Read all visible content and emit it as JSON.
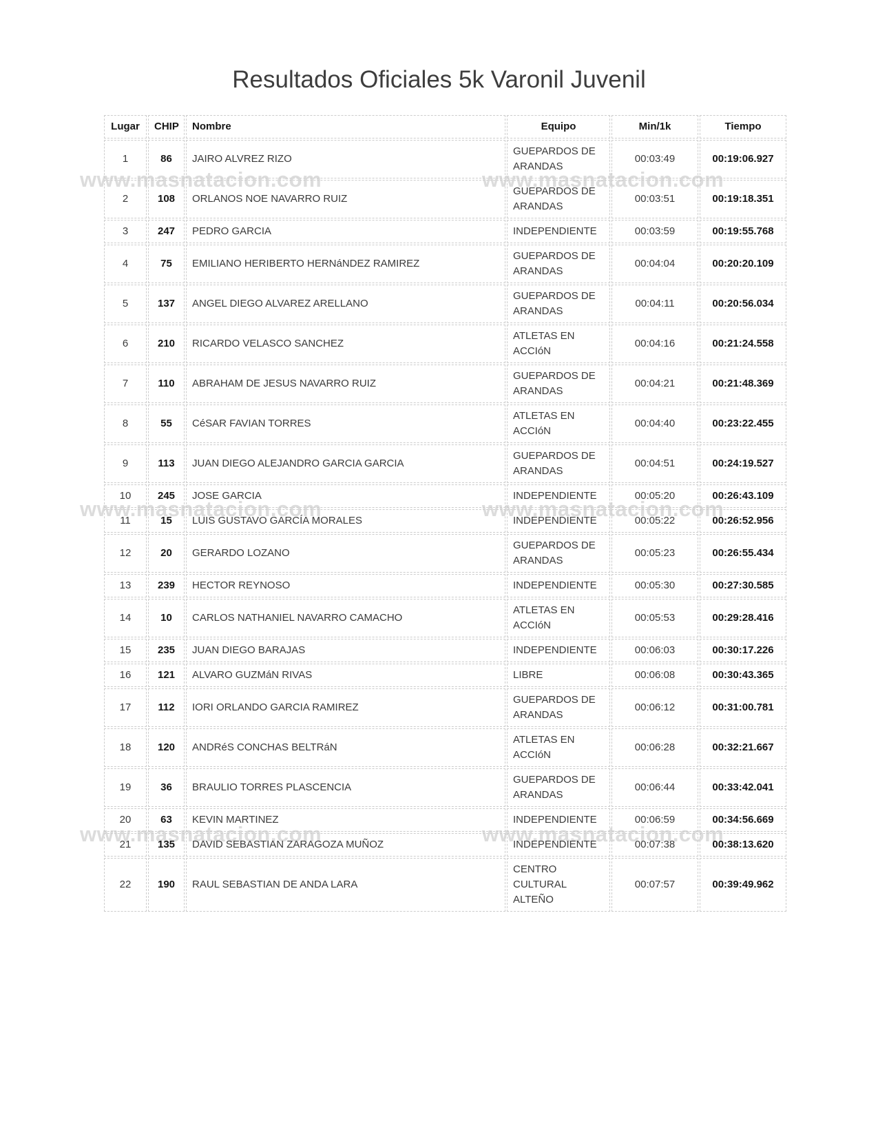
{
  "page": {
    "title": "Resultados Oficiales 5k Varonil Juvenil",
    "watermark_text": "www.masnatacion.com"
  },
  "colors": {
    "border": "#cccccc",
    "body_text": "#3b3b3b",
    "bold_text": "#161616",
    "watermark": "#dcdcdc"
  },
  "table": {
    "headers": {
      "lugar": "Lugar",
      "chip": "CHIP",
      "nombre": "Nombre",
      "equipo": "Equipo",
      "min1k": "Min/1k",
      "tiempo": "Tiempo"
    },
    "rows": [
      {
        "lugar": "1",
        "chip": "86",
        "nombre": "JAIRO ALVREZ RIZO",
        "equipo": "GUEPARDOS DE ARANDAS",
        "min1k": "00:03:49",
        "tiempo": "00:19:06.927"
      },
      {
        "lugar": "2",
        "chip": "108",
        "nombre": "ORLANOS NOE NAVARRO RUIZ",
        "equipo": "GUEPARDOS DE ARANDAS",
        "min1k": "00:03:51",
        "tiempo": "00:19:18.351"
      },
      {
        "lugar": "3",
        "chip": "247",
        "nombre": "PEDRO GARCIA",
        "equipo": "INDEPENDIENTE",
        "min1k": "00:03:59",
        "tiempo": "00:19:55.768"
      },
      {
        "lugar": "4",
        "chip": "75",
        "nombre": "EMILIANO HERIBERTO HERNáNDEZ RAMIREZ",
        "equipo": "GUEPARDOS DE ARANDAS",
        "min1k": "00:04:04",
        "tiempo": "00:20:20.109"
      },
      {
        "lugar": "5",
        "chip": "137",
        "nombre": "ANGEL DIEGO ALVAREZ ARELLANO",
        "equipo": "GUEPARDOS DE ARANDAS",
        "min1k": "00:04:11",
        "tiempo": "00:20:56.034"
      },
      {
        "lugar": "6",
        "chip": "210",
        "nombre": "RICARDO VELASCO SANCHEZ",
        "equipo": "ATLETAS EN ACCIóN",
        "min1k": "00:04:16",
        "tiempo": "00:21:24.558"
      },
      {
        "lugar": "7",
        "chip": "110",
        "nombre": "ABRAHAM DE JESUS NAVARRO RUIZ",
        "equipo": "GUEPARDOS DE ARANDAS",
        "min1k": "00:04:21",
        "tiempo": "00:21:48.369"
      },
      {
        "lugar": "8",
        "chip": "55",
        "nombre": "CéSAR FAVIAN TORRES",
        "equipo": "ATLETAS EN ACCIóN",
        "min1k": "00:04:40",
        "tiempo": "00:23:22.455"
      },
      {
        "lugar": "9",
        "chip": "113",
        "nombre": "JUAN DIEGO ALEJANDRO GARCIA GARCIA",
        "equipo": "GUEPARDOS DE ARANDAS",
        "min1k": "00:04:51",
        "tiempo": "00:24:19.527"
      },
      {
        "lugar": "10",
        "chip": "245",
        "nombre": "JOSE GARCIA",
        "equipo": "INDEPENDIENTE",
        "min1k": "00:05:20",
        "tiempo": "00:26:43.109"
      },
      {
        "lugar": "11",
        "chip": "15",
        "nombre": "LUIS GUSTAVO GARCÍA MORALES",
        "equipo": "INDEPENDIENTE",
        "min1k": "00:05:22",
        "tiempo": "00:26:52.956"
      },
      {
        "lugar": "12",
        "chip": "20",
        "nombre": "GERARDO LOZANO",
        "equipo": "GUEPARDOS DE ARANDAS",
        "min1k": "00:05:23",
        "tiempo": "00:26:55.434"
      },
      {
        "lugar": "13",
        "chip": "239",
        "nombre": "HECTOR REYNOSO",
        "equipo": "INDEPENDIENTE",
        "min1k": "00:05:30",
        "tiempo": "00:27:30.585"
      },
      {
        "lugar": "14",
        "chip": "10",
        "nombre": "CARLOS NATHANIEL NAVARRO CAMACHO",
        "equipo": "ATLETAS EN ACCIóN",
        "min1k": "00:05:53",
        "tiempo": "00:29:28.416"
      },
      {
        "lugar": "15",
        "chip": "235",
        "nombre": "JUAN DIEGO BARAJAS",
        "equipo": "INDEPENDIENTE",
        "min1k": "00:06:03",
        "tiempo": "00:30:17.226"
      },
      {
        "lugar": "16",
        "chip": "121",
        "nombre": "ALVARO GUZMáN RIVAS",
        "equipo": "LIBRE",
        "min1k": "00:06:08",
        "tiempo": "00:30:43.365"
      },
      {
        "lugar": "17",
        "chip": "112",
        "nombre": "IORI ORLANDO GARCIA RAMIREZ",
        "equipo": "GUEPARDOS DE ARANDAS",
        "min1k": "00:06:12",
        "tiempo": "00:31:00.781"
      },
      {
        "lugar": "18",
        "chip": "120",
        "nombre": "ANDRéS CONCHAS BELTRáN",
        "equipo": "ATLETAS EN ACCIóN",
        "min1k": "00:06:28",
        "tiempo": "00:32:21.667"
      },
      {
        "lugar": "19",
        "chip": "36",
        "nombre": "BRAULIO TORRES PLASCENCIA",
        "equipo": "GUEPARDOS DE ARANDAS",
        "min1k": "00:06:44",
        "tiempo": "00:33:42.041"
      },
      {
        "lugar": "20",
        "chip": "63",
        "nombre": "KEVIN MARTINEZ",
        "equipo": "INDEPENDIENTE",
        "min1k": "00:06:59",
        "tiempo": "00:34:56.669"
      },
      {
        "lugar": "21",
        "chip": "135",
        "nombre": "DAVID SEBASTIAN ZARAGOZA MUÑOZ",
        "equipo": "INDEPENDIENTE",
        "min1k": "00:07:38",
        "tiempo": "00:38:13.620"
      },
      {
        "lugar": "22",
        "chip": "190",
        "nombre": "RAUL SEBASTIAN DE ANDA LARA",
        "equipo": "CENTRO CULTURAL ALTEÑO",
        "min1k": "00:07:57",
        "tiempo": "00:39:49.962"
      }
    ]
  }
}
